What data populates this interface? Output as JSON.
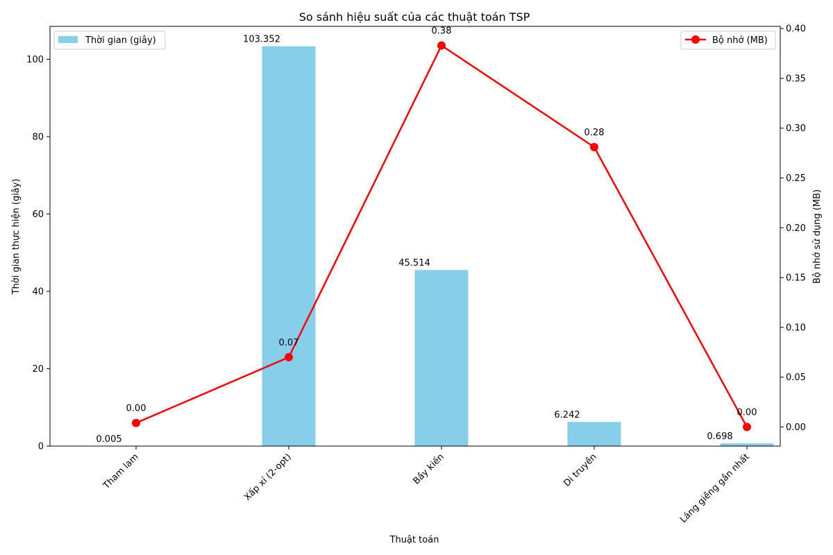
{
  "chart_data": {
    "type": "bar",
    "title": "So sánh hiệu suất của các thuật toán TSP",
    "xlabel": "Thuật toán",
    "ylabel_left": "Thời gian thực hiện (giây)",
    "ylabel_right": "Bộ nhớ sử dụng (MB)",
    "categories": [
      "Tham lam",
      "Xấp xỉ (2-opt)",
      "Bầy kiến",
      "Di truyền",
      "Láng giềng gần nhất"
    ],
    "series": [
      {
        "name": "Thời gian (giây)",
        "type": "bar",
        "axis": "left",
        "color": "#87ceeb",
        "values": [
          0.005,
          103.352,
          45.514,
          6.242,
          0.698
        ],
        "labels": [
          "0.005",
          "103.352",
          "45.514",
          "6.242",
          "0.698"
        ]
      },
      {
        "name": "Bộ nhớ (MB)",
        "type": "line",
        "axis": "right",
        "color": "#ff0000",
        "marker": "circle",
        "values": [
          0.004,
          0.07,
          0.383,
          0.281,
          0.0
        ],
        "labels": [
          "0.00",
          "0.07",
          "0.38",
          "0.28",
          "0.00"
        ]
      }
    ],
    "y_left": {
      "ylim": [
        0,
        108.5
      ],
      "ticks": [
        0,
        20,
        40,
        60,
        80,
        100
      ]
    },
    "y_right": {
      "ylim": [
        -0.0192,
        0.4022
      ],
      "ticks": [
        0.0,
        0.05,
        0.1,
        0.15,
        0.2,
        0.25,
        0.3,
        0.35,
        0.4
      ],
      "tick_labels": [
        "0.00",
        "0.05",
        "0.10",
        "0.15",
        "0.20",
        "0.25",
        "0.30",
        "0.35",
        "0.40"
      ]
    },
    "grid": false,
    "legend_left": "top-left",
    "legend_right": "top-right"
  }
}
